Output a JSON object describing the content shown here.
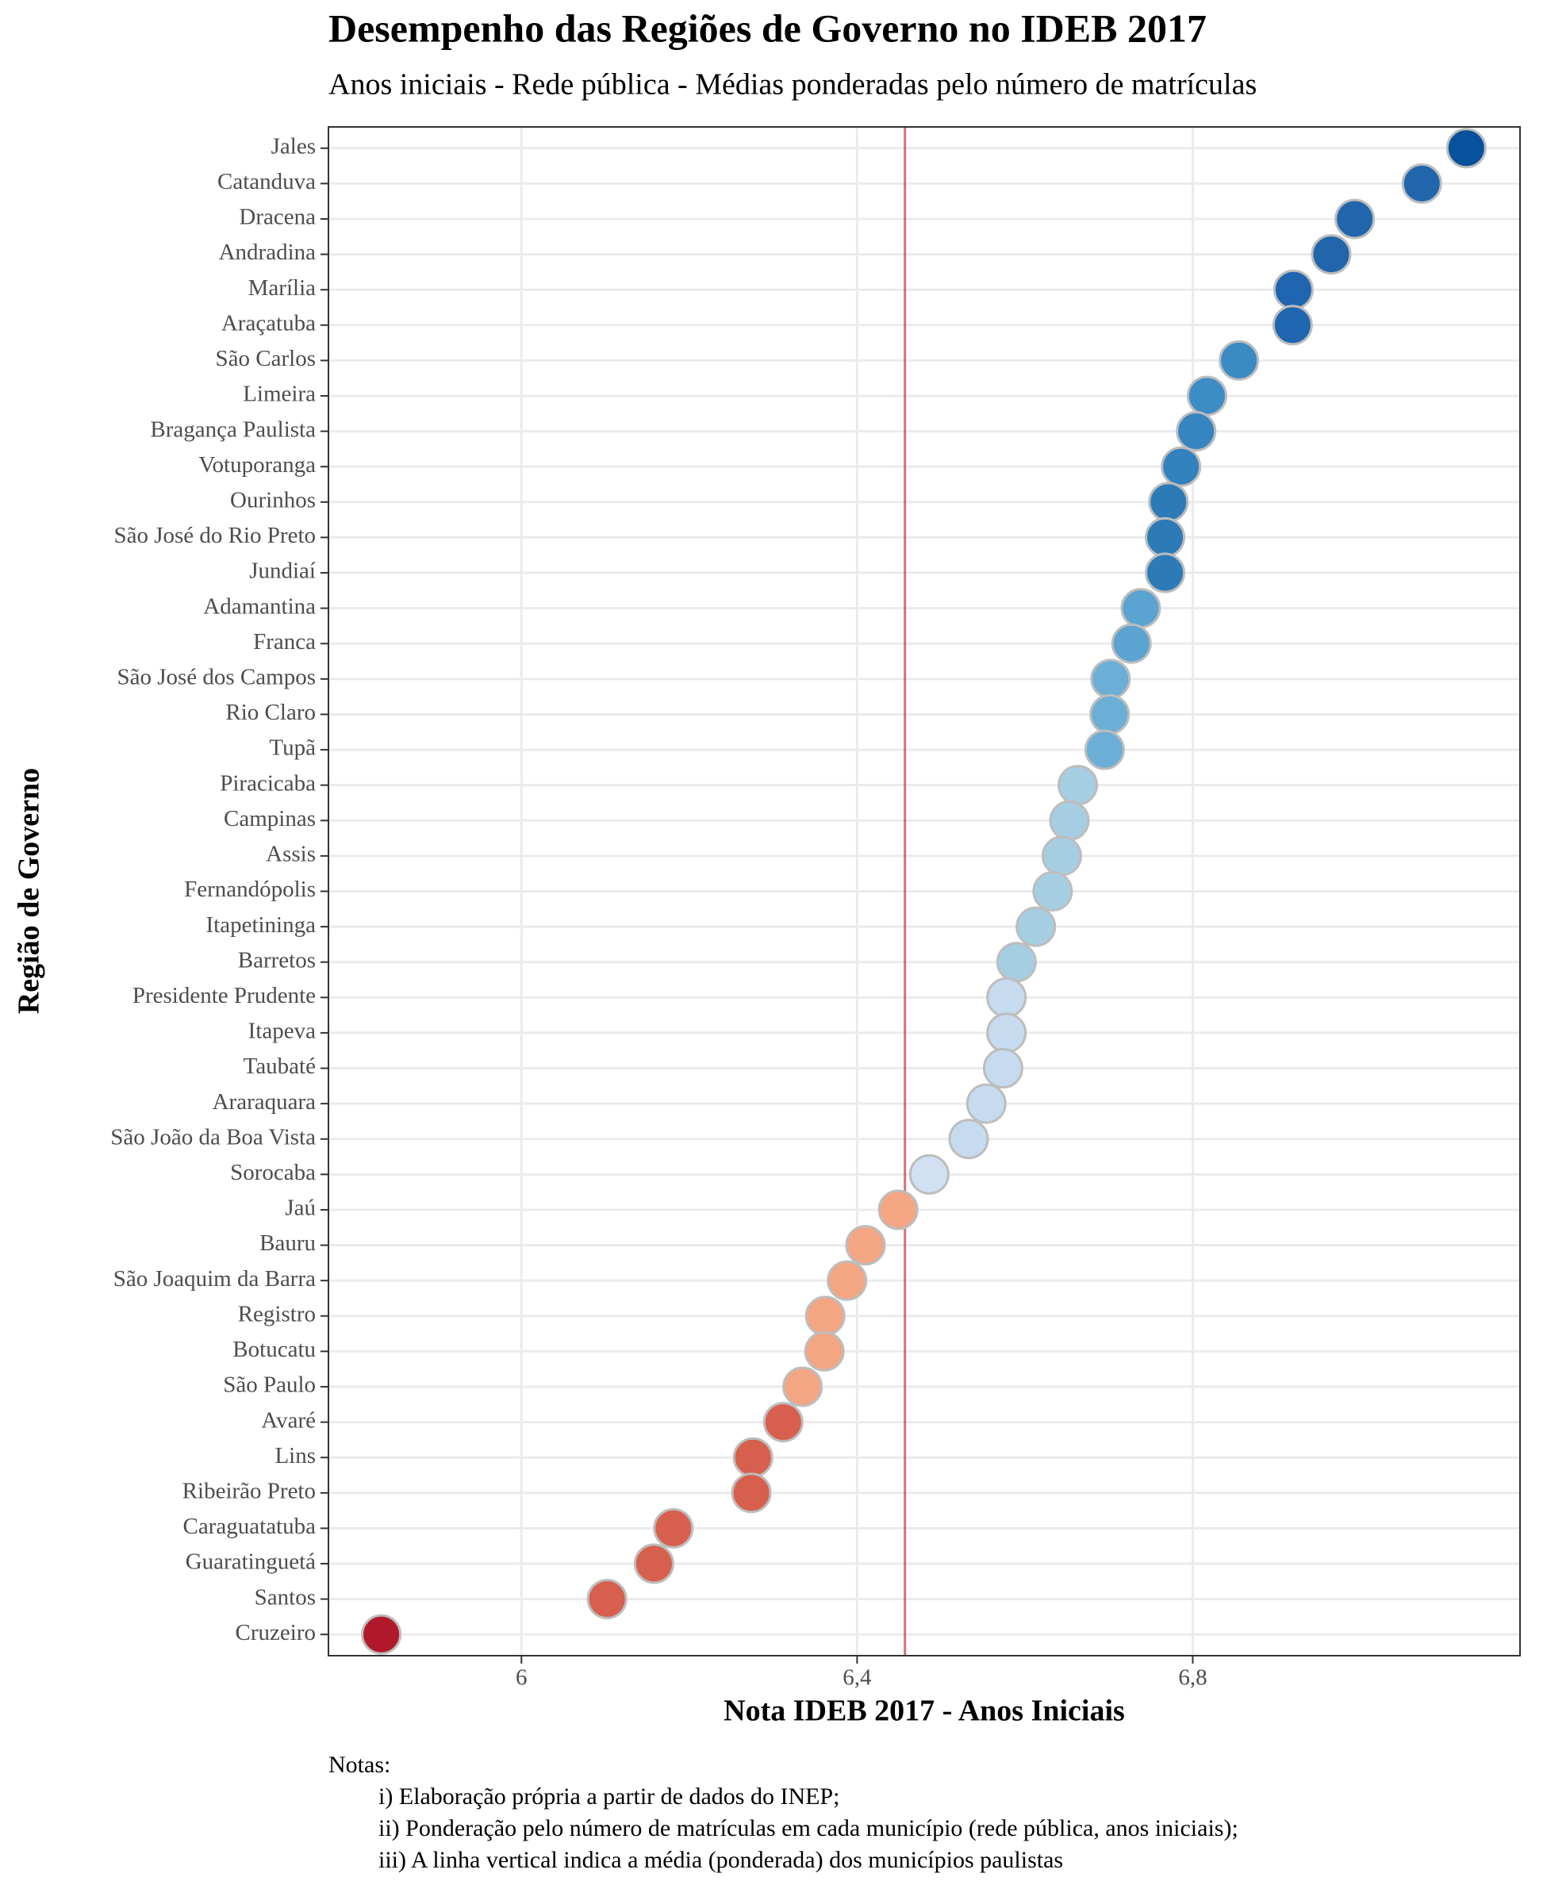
{
  "chart_data": {
    "type": "dot",
    "title": "Desempenho das Regiões de Governo no IDEB 2017",
    "subtitle": "Anos iniciais - Rede pública - Médias ponderadas pelo número de matrículas",
    "x_label": "Nota IDEB 2017 - Anos Iniciais",
    "y_label": "Região de Governo",
    "categories": [
      "Jales",
      "Catanduva",
      "Dracena",
      "Andradina",
      "Marília",
      "Araçatuba",
      "São Carlos",
      "Limeira",
      "Bragança Paulista",
      "Votuporanga",
      "Ourinhos",
      "São José do Rio Preto",
      "Jundiaí",
      "Adamantina",
      "Franca",
      "São José dos Campos",
      "Rio Claro",
      "Tupã",
      "Piracicaba",
      "Campinas",
      "Assis",
      "Fernandópolis",
      "Itapetininga",
      "Barretos",
      "Presidente Prudente",
      "Itapeva",
      "Taubaté",
      "Araraquara",
      "São João da Boa Vista",
      "Sorocaba",
      "Jaú",
      "Bauru",
      "São Joaquim da Barra",
      "Registro",
      "Botucatu",
      "São Paulo",
      "Avaré",
      "Lins",
      "Ribeirão Preto",
      "Caraguatatuba",
      "Guaratinguetá",
      "Santos",
      "Cruzeiro"
    ],
    "values": [
      7.126,
      7.073,
      6.993,
      6.965,
      6.92,
      6.919,
      6.855,
      6.817,
      6.804,
      6.786,
      6.771,
      6.767,
      6.767,
      6.738,
      6.727,
      6.702,
      6.701,
      6.695,
      6.663,
      6.653,
      6.644,
      6.633,
      6.613,
      6.59,
      6.578,
      6.578,
      6.574,
      6.554,
      6.533,
      6.486,
      6.449,
      6.41,
      6.388,
      6.362,
      6.361,
      6.335,
      6.312,
      6.276,
      6.274,
      6.181,
      6.158,
      6.102,
      5.833
    ],
    "colors": [
      "#08519c",
      "#2166ac",
      "#2166ac",
      "#2166ac",
      "#1f65b0",
      "#1f65b0",
      "#3a8ac4",
      "#3c8cc5",
      "#3585c1",
      "#3182bd",
      "#2c7bb6",
      "#2c7bb6",
      "#2c7bb6",
      "#5ba3d0",
      "#5ba3d0",
      "#6baed6",
      "#6baed6",
      "#6baed6",
      "#a6cee3",
      "#a6cee3",
      "#a6cee3",
      "#a6cee3",
      "#a6cee3",
      "#a6cee3",
      "#c6dbef",
      "#c6dbef",
      "#c6dbef",
      "#c6dbef",
      "#c6dbef",
      "#d1e0f2",
      "#f4a582",
      "#f4a582",
      "#f4a582",
      "#f4a582",
      "#f4a582",
      "#f4a582",
      "#d6604d",
      "#d6604d",
      "#d6604d",
      "#d6604d",
      "#d6604d",
      "#d6604d",
      "#b2182b"
    ],
    "xlim": [
      5.77,
      7.19
    ],
    "xticks": [
      6,
      {
        "value": 6.4,
        "label": "6,4"
      },
      {
        "value": 6.8,
        "label": "6,8"
      }
    ],
    "grid": true,
    "mean_line": {
      "value": 6.457,
      "color": "#b2182b"
    }
  },
  "notes": {
    "title": "Notas:",
    "items": [
      "i) Elaboração própria a partir de dados do INEP;",
      "ii) Ponderação pelo número de matrículas em cada município (rede pública, anos iniciais);",
      "iii) A linha vertical indica a média (ponderada) dos municípios paulistas"
    ]
  }
}
